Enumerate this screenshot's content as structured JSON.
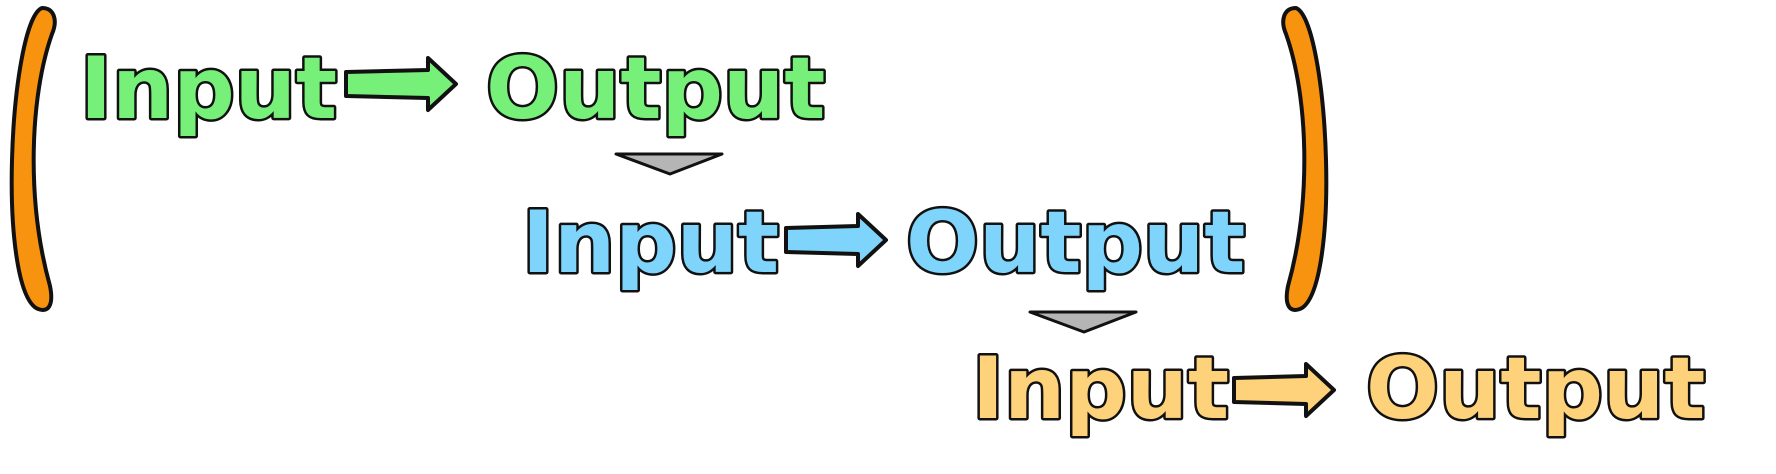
{
  "input_label": "Input",
  "output_label": "Output",
  "rows": [
    {
      "input": "Input",
      "output": "Output",
      "color": "#77f07a"
    },
    {
      "input": "Input",
      "output": "Output",
      "color": "#7fd4fb"
    },
    {
      "input": "Input",
      "output": "Output",
      "color": "#fdd27a"
    }
  ],
  "bracket_color": "#f7930e",
  "connector_color": "#b5b5b5",
  "grouped_rows": [
    1,
    2
  ]
}
